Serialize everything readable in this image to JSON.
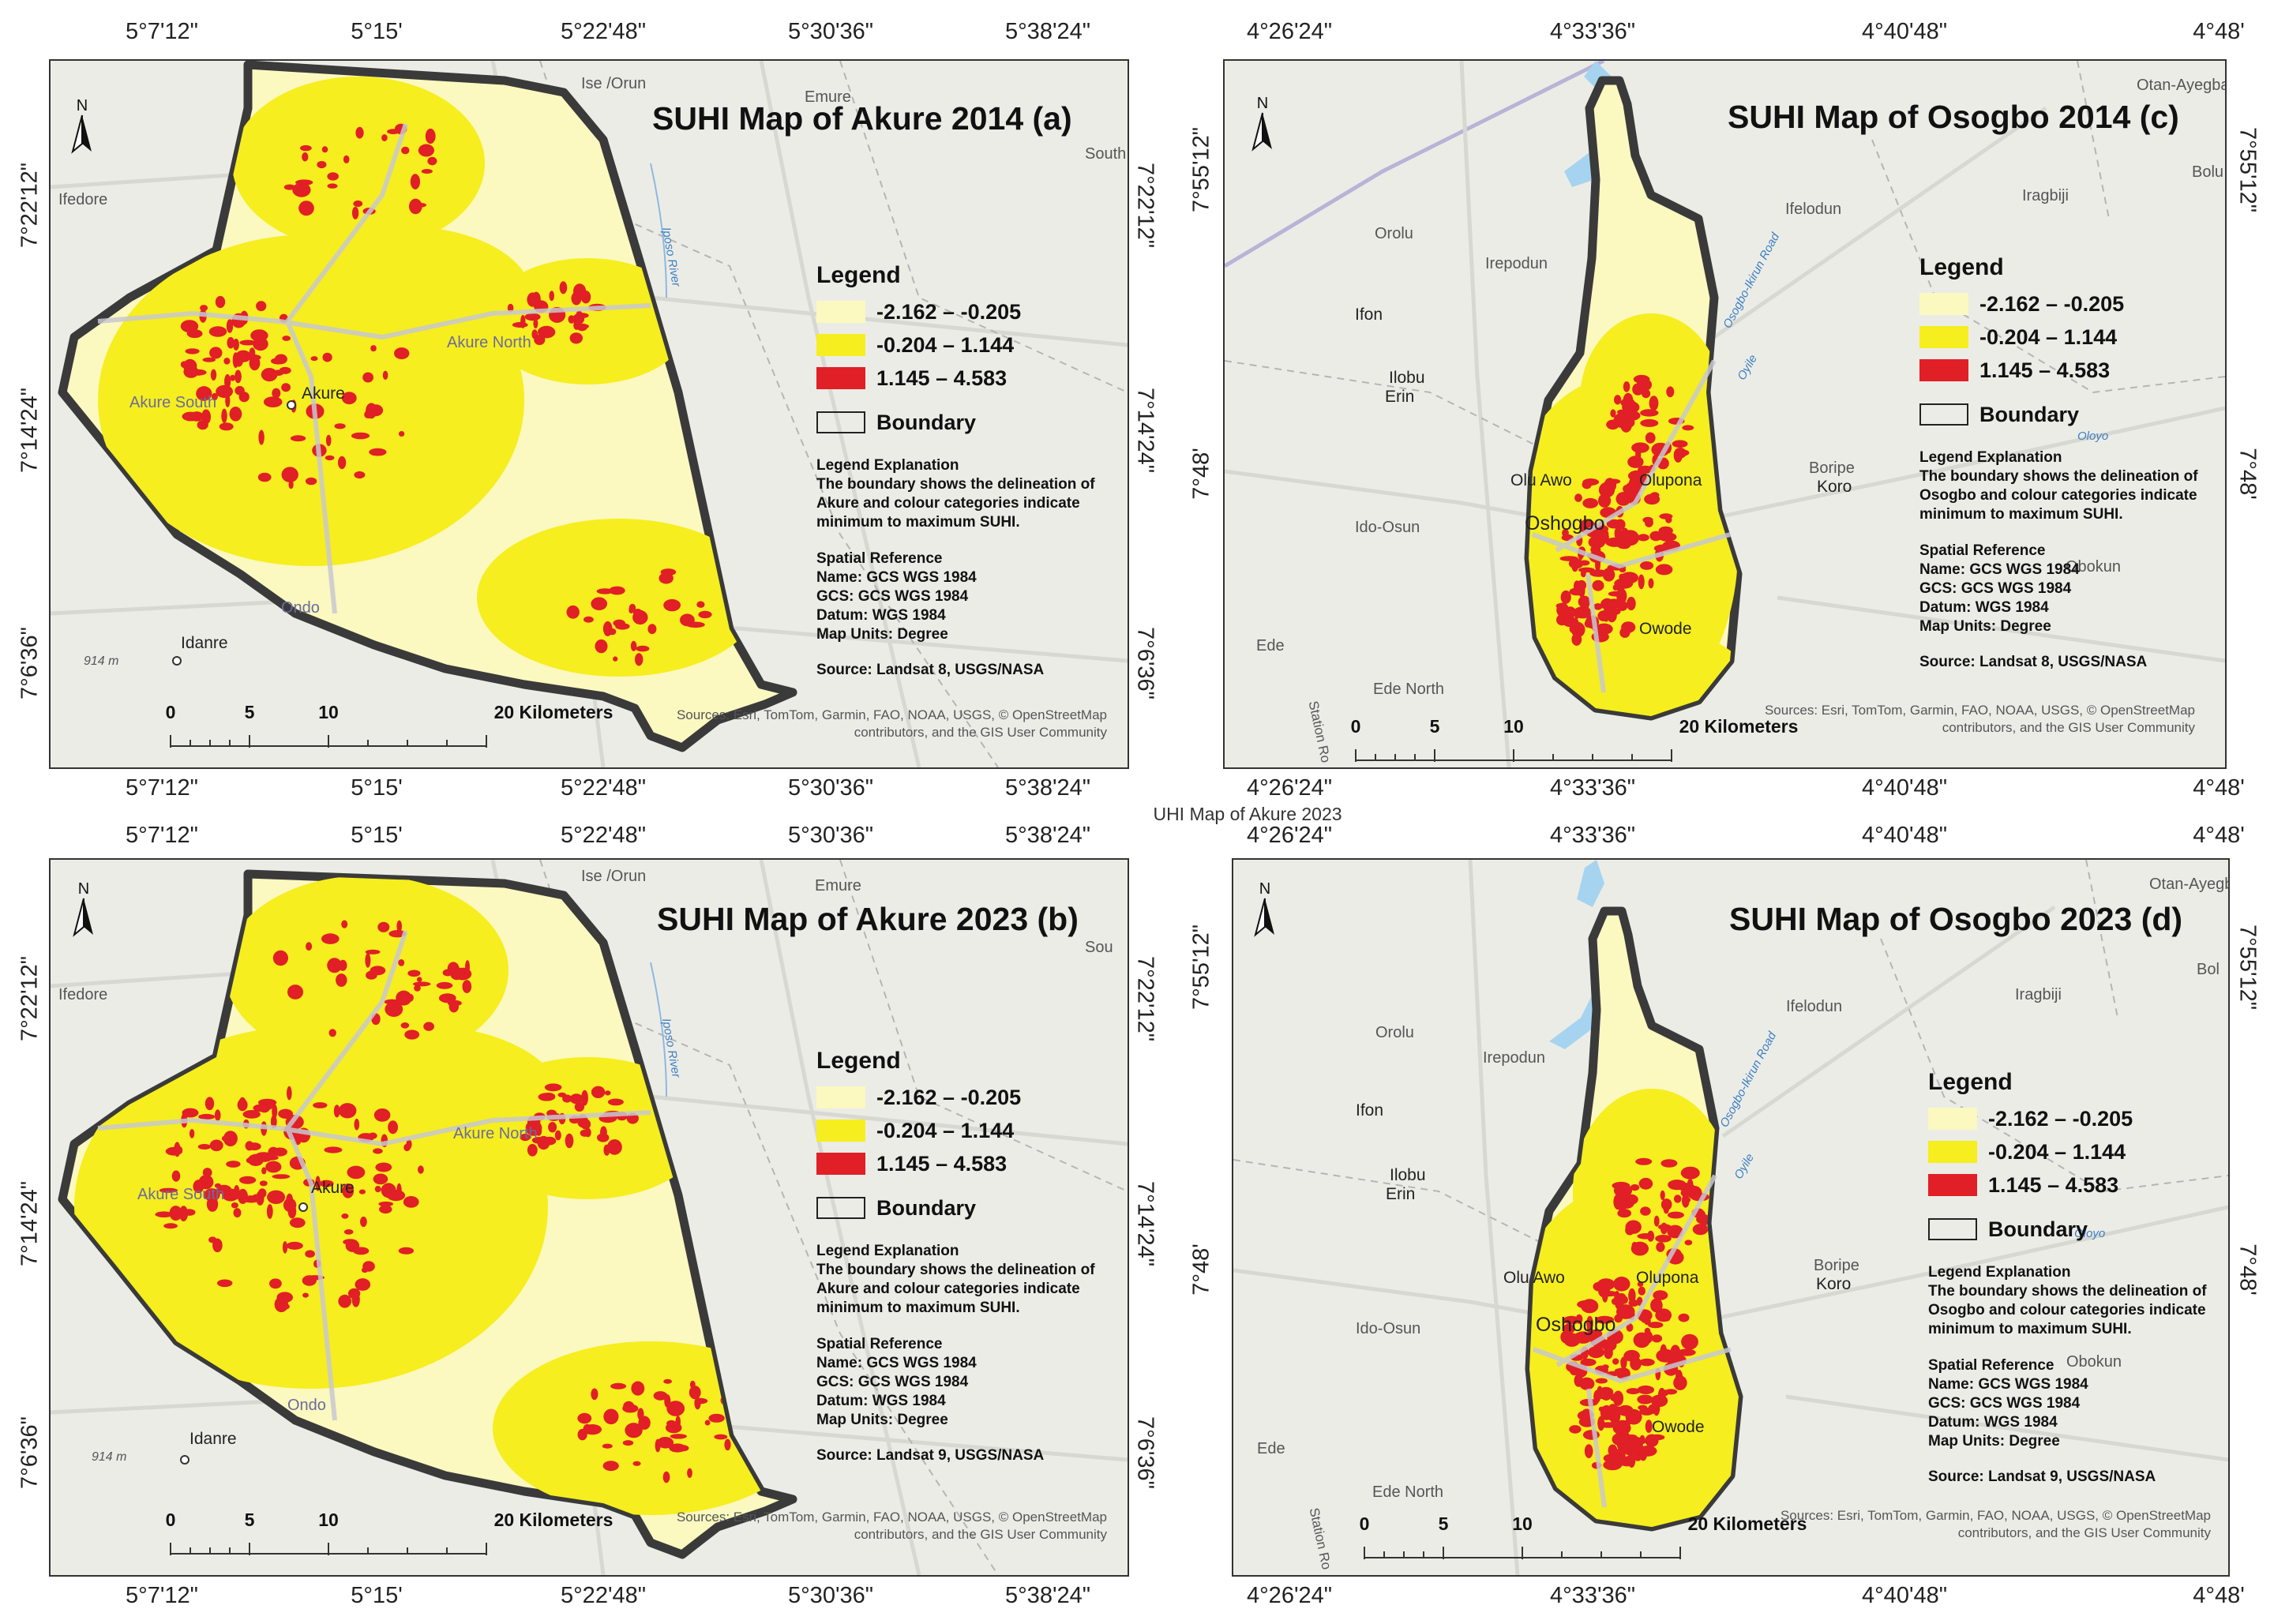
{
  "mid_caption": "UHI Map of Akure 2023",
  "akure_top_coords": [
    "5°7'12\"",
    "5°15'",
    "5°22'48\"",
    "5°30'36\"",
    "5°38'24\""
  ],
  "akure_side_coords": [
    "7°22'12\"",
    "7°14'24\"",
    "7°6'36\""
  ],
  "osogbo_top_coords": [
    "4°26'24\"",
    "4°33'36\"",
    "4°40'48\"",
    "4°48'"
  ],
  "osogbo_side_coords": [
    "7°55'12\"",
    "7°48'"
  ],
  "legend": {
    "title": "Legend",
    "classes": [
      {
        "label": "-2.162 – -0.205",
        "color": "#fbf8c0"
      },
      {
        "label": "-0.204 – 1.144",
        "color": "#f6ee1e"
      },
      {
        "label": "1.145 – 4.583",
        "color": "#e11f26"
      }
    ],
    "boundary_label": "Boundary",
    "explanation_title": "Legend Explanation",
    "spatial_reference_title": "Spatial Reference",
    "spatial_reference": [
      "Name: GCS WGS 1984",
      "GCS: GCS WGS 1984",
      "Datum: WGS 1984",
      "Map Units: Degree"
    ]
  },
  "scale": {
    "ticks": [
      "0",
      "5",
      "10"
    ],
    "end_label": "20 Kilometers"
  },
  "north_label": "N",
  "attribution_lines": [
    "Sources: Esri, TomTom, Garmin, FAO, NOAA, USGS, © OpenStreetMap",
    "contributors, and the GIS User Community"
  ],
  "panels": [
    {
      "id": "a",
      "title": "SUHI Map of Akure 2014  (a)",
      "explanation": "The boundary shows the delineation of Akure and colour categories indicate minimum to maximum SUHI.",
      "source": "Source: Landsat 8, USGS/NASA",
      "places": [
        "Ise /Orun",
        "Emure",
        "Ifedore",
        "Akure North",
        "Akure South",
        "Akure",
        "Ondo",
        "Idanre",
        "914 m",
        "South"
      ],
      "rivers": [
        "Iposo River"
      ],
      "hotspot_share": 0.18
    },
    {
      "id": "b",
      "title": "SUHI Map of Akure 2023  (b)",
      "explanation": "The boundary shows the delineation of Akure and colour categories indicate minimum to maximum SUHI.",
      "source": "Source: Landsat 9, USGS/NASA",
      "places": [
        "Ise /Orun",
        "Emure",
        "Ifedore",
        "Akure North",
        "Akure South",
        "Akure",
        "Ondo",
        "Idanre",
        "914 m",
        "Sou"
      ],
      "rivers": [
        "Iposo River"
      ],
      "hotspot_share": 0.28
    },
    {
      "id": "c",
      "title": "SUHI Map of Osogbo 2014  (c)",
      "explanation": "The boundary shows the delineation of Osogbo and colour categories indicate minimum to maximum SUHI.",
      "source": "Source: Landsat 8, USGS/NASA",
      "places": [
        "Otan-Ayegba",
        "Bolu",
        "Orolu",
        "Iragbiji",
        "Ifelodun",
        "Irepodun",
        "Ifon",
        "Ilobu",
        "Erin",
        "Olu Awo",
        "Olupona",
        "Boripe",
        "Koro",
        "Ido-Osun",
        "Oshogbo",
        "Obokun",
        "Owode",
        "Ede",
        "Ede North",
        "Station Ro"
      ],
      "rivers": [
        "Osogbo-Ikirun Road",
        "Oyile",
        "Oloyo"
      ],
      "hotspot_share": 0.16
    },
    {
      "id": "d",
      "title": "SUHI Map of Osogbo 2023  (d)",
      "explanation": "The boundary shows the delineation of Osogbo and colour categories indicate minimum to maximum SUHI.",
      "source": "Source: Landsat 9, USGS/NASA",
      "places": [
        "Otan-Ayegb",
        "Bol",
        "Orolu",
        "Iragbiji",
        "Ifelodun",
        "Irepodun",
        "Ifon",
        "Ilobu",
        "Erin",
        "Olu Awo",
        "Olupona",
        "Boripe",
        "Koro",
        "Ido-Osun",
        "Oshogbo",
        "Obokun",
        "Owode",
        "Ede",
        "Ede North",
        "Station Ro"
      ],
      "rivers": [
        "Osogbo-Ikirun Road",
        "Oyile",
        "Oloyo"
      ],
      "hotspot_share": 0.2
    }
  ]
}
